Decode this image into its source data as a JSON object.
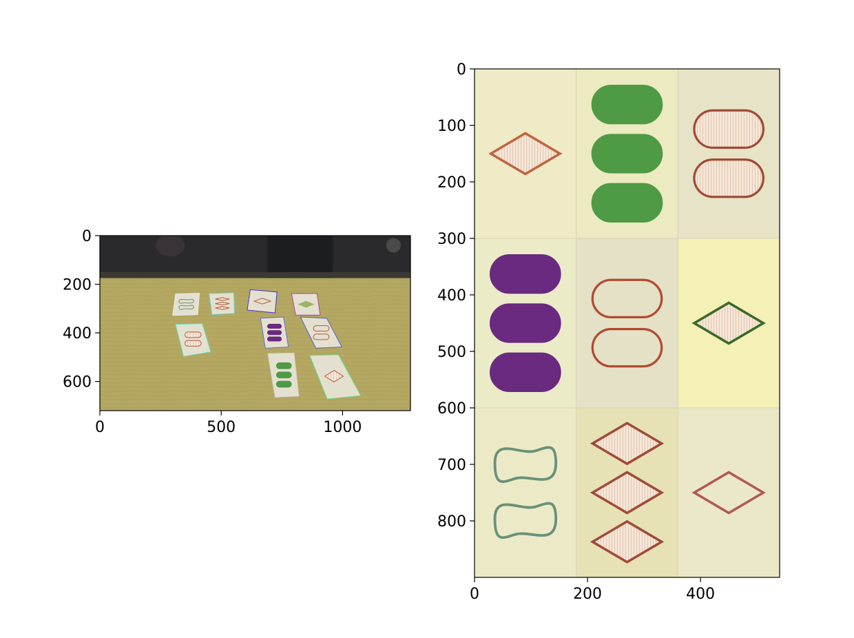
{
  "chart_data": [
    {
      "type": "image",
      "title": "",
      "xlabel": "",
      "ylabel": "",
      "grid": false,
      "legend": "none",
      "xlim": [
        0,
        1280
      ],
      "ylim": [
        720,
        0
      ],
      "x_ticks": [
        {
          "value": 0,
          "label": "0"
        },
        {
          "value": 500,
          "label": "500"
        },
        {
          "value": 1000,
          "label": "1000"
        }
      ],
      "y_ticks": [
        {
          "value": 0,
          "label": "0"
        },
        {
          "value": 200,
          "label": "200"
        },
        {
          "value": 400,
          "label": "400"
        },
        {
          "value": 600,
          "label": "600"
        }
      ],
      "image_content": {
        "scene": "tabletop with nine cards",
        "horizon_y": 175,
        "cards": [
          {
            "corners": [
              [
                312,
                240
              ],
              [
                410,
                237
              ],
              [
                403,
                325
              ],
              [
                300,
                328
              ]
            ],
            "outline": "#eaeaea",
            "shape": "squiggle",
            "count": 2,
            "fill": "open",
            "color": "#7fa08a"
          },
          {
            "corners": [
              [
                450,
                238
              ],
              [
                552,
                235
              ],
              [
                555,
                320
              ],
              [
                462,
                325
              ]
            ],
            "outline": "#66d0d0",
            "shape": "diamond",
            "count": 3,
            "fill": "striped",
            "color": "#b05a40"
          },
          {
            "corners": [
              [
                620,
                222
              ],
              [
                730,
                232
              ],
              [
                722,
                318
              ],
              [
                607,
                306
              ]
            ],
            "outline": "#4433cc",
            "shape": "diamond",
            "count": 1,
            "fill": "open",
            "color": "#b05a40"
          },
          {
            "corners": [
              [
                790,
                238
              ],
              [
                895,
                238
              ],
              [
                908,
                327
              ],
              [
                807,
                327
              ]
            ],
            "outline": "#b040a0",
            "shape": "diamond",
            "count": 1,
            "fill": "solid",
            "color": "#9ab36a"
          },
          {
            "corners": [
              [
                662,
                340
              ],
              [
                757,
                335
              ],
              [
                777,
                458
              ],
              [
                682,
                463
              ]
            ],
            "outline": "#6070d0",
            "shape": "oval",
            "count": 3,
            "fill": "solid",
            "color": "#6a2a80"
          },
          {
            "corners": [
              [
                827,
                335
              ],
              [
                935,
                340
              ],
              [
                997,
                458
              ],
              [
                890,
                463
              ]
            ],
            "outline": "#5060c0",
            "shape": "oval",
            "count": 2,
            "fill": "open",
            "color": "#b05a40"
          },
          {
            "corners": [
              [
                312,
                365
              ],
              [
                422,
                362
              ],
              [
                457,
                478
              ],
              [
                345,
                497
              ]
            ],
            "outline": "#66e0c0",
            "shape": "oval",
            "count": 2,
            "fill": "striped",
            "color": "#b05a40"
          },
          {
            "corners": [
              [
                692,
                485
              ],
              [
                800,
                483
              ],
              [
                820,
                660
              ],
              [
                722,
                665
              ]
            ],
            "outline": "#d0d0d0",
            "shape": "oval",
            "count": 3,
            "fill": "solid",
            "color": "#4f9a45"
          },
          {
            "corners": [
              [
                865,
                493
              ],
              [
                983,
                490
              ],
              [
                1075,
                658
              ],
              [
                937,
                672
              ]
            ],
            "outline": "#66e090",
            "shape": "diamond",
            "count": 1,
            "fill": "striped",
            "color": "#b05a40"
          }
        ]
      }
    },
    {
      "type": "image",
      "title": "",
      "xlabel": "",
      "ylabel": "",
      "grid": false,
      "legend": "none",
      "xlim": [
        0,
        540
      ],
      "ylim": [
        900,
        0
      ],
      "x_ticks": [
        {
          "value": 0,
          "label": "0"
        },
        {
          "value": 200,
          "label": "200"
        },
        {
          "value": 400,
          "label": "400"
        }
      ],
      "y_ticks": [
        {
          "value": 0,
          "label": "0"
        },
        {
          "value": 100,
          "label": "100"
        },
        {
          "value": 200,
          "label": "200"
        },
        {
          "value": 300,
          "label": "300"
        },
        {
          "value": 400,
          "label": "400"
        },
        {
          "value": 500,
          "label": "500"
        },
        {
          "value": 600,
          "label": "600"
        },
        {
          "value": 700,
          "label": "700"
        },
        {
          "value": 800,
          "label": "800"
        }
      ],
      "image_content": {
        "grid_rows": 3,
        "grid_cols": 3,
        "cells": [
          {
            "row": 0,
            "col": 0,
            "bg": "#efebc6",
            "shape": "diamond",
            "count": 1,
            "fill": "striped",
            "color": "#c06540"
          },
          {
            "row": 0,
            "col": 1,
            "bg": "#eceac0",
            "shape": "oval",
            "count": 3,
            "fill": "solid",
            "color": "#4f9a45"
          },
          {
            "row": 0,
            "col": 2,
            "bg": "#e6e3c6",
            "shape": "oval",
            "count": 2,
            "fill": "striped",
            "color": "#a04a38"
          },
          {
            "row": 1,
            "col": 0,
            "bg": "#ecebc8",
            "shape": "oval",
            "count": 3,
            "fill": "solid",
            "color": "#6a2a80"
          },
          {
            "row": 1,
            "col": 1,
            "bg": "#e4e1c6",
            "shape": "oval",
            "count": 2,
            "fill": "open",
            "color": "#b04a30"
          },
          {
            "row": 1,
            "col": 2,
            "bg": "#f4f0b6",
            "shape": "diamond",
            "count": 1,
            "fill": "striped",
            "color": "#3a6a28"
          },
          {
            "row": 2,
            "col": 0,
            "bg": "#eceac6",
            "shape": "squiggle",
            "count": 2,
            "fill": "open",
            "color": "#6a907a"
          },
          {
            "row": 2,
            "col": 1,
            "bg": "#e6e2b6",
            "shape": "diamond",
            "count": 3,
            "fill": "striped",
            "color": "#a04a38"
          },
          {
            "row": 2,
            "col": 2,
            "bg": "#ebe8c8",
            "shape": "diamond",
            "count": 1,
            "fill": "open",
            "color": "#b05a50"
          }
        ]
      }
    }
  ]
}
